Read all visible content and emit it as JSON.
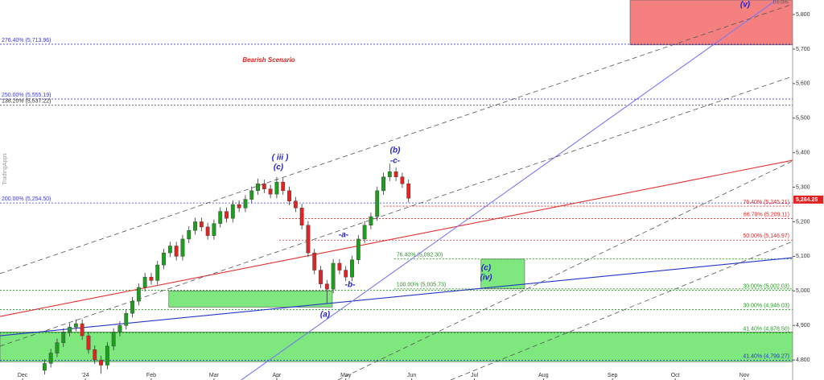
{
  "chart_data": {
    "type": "candlestick",
    "watermark": "TradingApps",
    "annotations": [
      "Bearish Scenario",
      "(v)",
      "( iii )",
      "(c)",
      "(b)",
      "-c-",
      "-a-",
      "-b-",
      "(a)",
      "(c)",
      "(iv)",
      "100.00%"
    ],
    "up_color": "#1f9d1f",
    "down_color": "#e02424",
    "x": [
      7,
      9,
      11,
      13,
      15,
      17,
      19,
      21,
      23,
      25,
      27,
      29,
      31,
      33,
      35,
      37,
      39,
      41,
      43,
      45,
      47,
      49,
      51,
      53,
      55,
      57,
      59,
      61,
      63,
      65,
      67,
      69,
      71,
      73,
      75,
      77,
      79,
      81,
      83,
      85,
      87,
      89,
      91,
      93,
      95,
      97,
      99,
      101,
      103,
      105,
      107,
      109,
      111,
      113,
      115,
      117,
      119,
      121,
      123
    ],
    "open": [
      4770,
      4790,
      4820,
      4850,
      4880,
      4895,
      4905,
      4870,
      4830,
      4800,
      4785,
      4840,
      4880,
      4900,
      4935,
      4970,
      5010,
      5040,
      5030,
      5075,
      5110,
      5130,
      5100,
      5150,
      5175,
      5200,
      5185,
      5160,
      5195,
      5230,
      5210,
      5250,
      5240,
      5265,
      5290,
      5310,
      5295,
      5280,
      5315,
      5290,
      5260,
      5240,
      5190,
      5110,
      5060,
      5020,
      5005,
      5080,
      5060,
      5040,
      5090,
      5150,
      5190,
      5215,
      5290,
      5330,
      5345,
      5330,
      5310
    ],
    "high": [
      4802,
      4832,
      4862,
      4892,
      4907,
      4917,
      4917,
      4882,
      4842,
      4812,
      4852,
      4892,
      4912,
      4947,
      4982,
      5022,
      5052,
      5052,
      5087,
      5122,
      5142,
      5142,
      5162,
      5187,
      5212,
      5212,
      5197,
      5207,
      5242,
      5242,
      5262,
      5262,
      5277,
      5302,
      5325,
      5322,
      5307,
      5330,
      5327,
      5302,
      5272,
      5252,
      5202,
      5122,
      5072,
      5032,
      5092,
      5092,
      5072,
      5102,
      5162,
      5202,
      5227,
      5302,
      5342,
      5368,
      5357,
      5342,
      5322
    ],
    "low": [
      4758,
      4778,
      4808,
      4838,
      4868,
      4883,
      4858,
      4818,
      4788,
      4760,
      4773,
      4828,
      4868,
      4888,
      4923,
      4958,
      4998,
      5018,
      5018,
      5063,
      5098,
      5088,
      5088,
      5138,
      5163,
      5173,
      5148,
      5148,
      5183,
      5198,
      5198,
      5228,
      5228,
      5253,
      5278,
      5283,
      5268,
      5268,
      5278,
      5248,
      5228,
      5178,
      5098,
      5048,
      5008,
      4965,
      4993,
      5048,
      5028,
      5028,
      5078,
      5138,
      5178,
      5203,
      5278,
      5318,
      5318,
      5298,
      5256
    ],
    "close": [
      4790,
      4820,
      4850,
      4880,
      4895,
      4905,
      4870,
      4830,
      4800,
      4785,
      4840,
      4880,
      4900,
      4935,
      4970,
      5010,
      5040,
      5030,
      5075,
      5110,
      5130,
      5100,
      5150,
      5175,
      5200,
      5185,
      5160,
      5195,
      5230,
      5210,
      5250,
      5240,
      5265,
      5290,
      5310,
      5295,
      5280,
      5315,
      5290,
      5260,
      5240,
      5190,
      5110,
      5060,
      5020,
      5005,
      5080,
      5060,
      5040,
      5090,
      5150,
      5190,
      5215,
      5290,
      5330,
      5345,
      5330,
      5310,
      5268
    ],
    "last_price": {
      "value": 5264.25,
      "label": "5,264.25"
    },
    "xlim": [
      -7.2,
      245.4
    ],
    "ylim": [
      4742,
      5842
    ],
    "xticks": [
      {
        "value": 0,
        "label": "Dec"
      },
      {
        "value": 20,
        "label": "'24"
      },
      {
        "value": 41,
        "label": "Feb"
      },
      {
        "value": 61,
        "label": "Mar"
      },
      {
        "value": 81,
        "label": "Apr"
      },
      {
        "value": 103,
        "label": "May"
      },
      {
        "value": 124,
        "label": "Jun"
      },
      {
        "value": 144,
        "label": "Jul"
      },
      {
        "value": 166,
        "label": "Aug"
      },
      {
        "value": 188,
        "label": "Sep"
      },
      {
        "value": 208,
        "label": "Oct"
      },
      {
        "value": 230,
        "label": "Nov"
      }
    ],
    "yticks": [
      {
        "value": 4800,
        "label": "4,800"
      },
      {
        "value": 4900,
        "label": "4,900"
      },
      {
        "value": 5000,
        "label": "5,000"
      },
      {
        "value": 5100,
        "label": "5,100"
      },
      {
        "value": 5200,
        "label": "5,200"
      },
      {
        "value": 5300,
        "label": "5,300"
      },
      {
        "value": 5400,
        "label": "5,400"
      },
      {
        "value": 5500,
        "label": "5,500"
      },
      {
        "value": 5600,
        "label": "5,600"
      },
      {
        "value": 5700,
        "label": "5,700"
      },
      {
        "value": 5800,
        "label": "5,800"
      }
    ],
    "zones": [
      {
        "x": [
          193.6,
          245.4
        ],
        "y": [
          5712,
          5842
        ],
        "color": "#f58080"
      },
      {
        "x": [
          146.1,
          160
        ],
        "y": [
          5007,
          5092
        ],
        "color": "#7ee87e"
      },
      {
        "x": [
          46.6,
          98.7
        ],
        "y": [
          4953,
          5000
        ],
        "color": "#7ee87e"
      },
      {
        "x": [
          -7.2,
          245.4
        ],
        "y": [
          4795,
          4881
        ],
        "color": "#7ee87e"
      }
    ],
    "trend_lines": [
      {
        "color": "#e63030",
        "dash": false,
        "points": [
          -7.2,
          4926,
          245.4,
          5378
        ]
      },
      {
        "color": "#2636c8",
        "dash": false,
        "points": [
          -7.2,
          4870,
          245.4,
          5096
        ]
      },
      {
        "color": "#7a7af0",
        "dash": false,
        "points": [
          69.7,
          4742,
          240.2,
          5842
        ]
      },
      {
        "color": "#555555",
        "dash": true,
        "points": [
          -7.2,
          5050,
          245.4,
          5830
        ]
      },
      {
        "color": "#555555",
        "dash": true,
        "points": [
          -7.2,
          4840,
          245.4,
          5621
        ]
      },
      {
        "color": "#555555",
        "dash": true,
        "points": [
          100.5,
          4742,
          245.4,
          5376
        ]
      },
      {
        "color": "#555555",
        "dash": true,
        "points": [
          136.4,
          4742,
          245.4,
          5143
        ]
      }
    ],
    "levels": [
      {
        "label": "276.40% (5,713.96)",
        "value": 5713.96,
        "color": "#3b3bd6",
        "side": "left"
      },
      {
        "label": "250.00% (5,555.19)",
        "value": 5555.19,
        "color": "#3b3bd6",
        "side": "left"
      },
      {
        "label": "138.20% (5,537.22)",
        "value": 5537.22,
        "color": "#333333",
        "side": "left"
      },
      {
        "label": "200.00% (5,254.50)",
        "value": 5254.5,
        "color": "#3b3bd6",
        "side": "left"
      },
      {
        "label": "76.40% (5,245.21)",
        "value": 5245.21,
        "color": "#e02424",
        "side": "right",
        "from": 115
      },
      {
        "label": "66.70% (5,209.11)",
        "value": 5209.11,
        "color": "#e02424",
        "side": "right",
        "from": 81.8
      },
      {
        "label": "50.00% (5,146.97)",
        "value": 5146.97,
        "color": "#e02424",
        "side": "right",
        "from": 81.8
      },
      {
        "label": "76.40% (5,092.30)",
        "value": 5092.3,
        "color": "#1f9d1f",
        "side": "start",
        "from": 118.4
      },
      {
        "label": "100.00% (5,005.73)",
        "value": 5005.73,
        "color": "#1f9d1f",
        "side": "start",
        "from": 118.4
      },
      {
        "label": "30.00% (5,002.03)",
        "value": 5002.03,
        "color": "#1f9d1f",
        "side": "right"
      },
      {
        "label": "30.00% (4,946.03)",
        "value": 4946.03,
        "color": "#1f9d1f",
        "side": "right"
      },
      {
        "label": "41.40% (4,878.50)",
        "value": 4878.5,
        "color": "#1f9d1f",
        "side": "right"
      },
      {
        "label": "41.40% (4,799.27)",
        "value": 4799.27,
        "color": "#2636c8",
        "side": "right"
      }
    ]
  }
}
